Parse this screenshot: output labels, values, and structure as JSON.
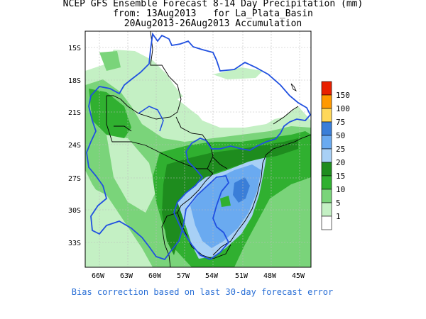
{
  "title": {
    "line1": "NCEP GFS Ensemble Forecast 8-14 Day Precipitation (mm)",
    "line2": "from: 13Aug2013   for La_Plata_Basin",
    "line3": "20Aug2013-26Aug2013 Accumulation"
  },
  "axes": {
    "lat_labels": [
      "15S",
      "18S",
      "21S",
      "24S",
      "27S",
      "30S",
      "33S"
    ],
    "lon_labels": [
      "66W",
      "63W",
      "60W",
      "57W",
      "54W",
      "51W",
      "48W",
      "45W"
    ]
  },
  "legend": {
    "levels": [
      {
        "label": "150",
        "color": "#e82000"
      },
      {
        "label": "100",
        "color": "#ff9900"
      },
      {
        "label": "75",
        "color": "#ffd85a"
      },
      {
        "label": "50",
        "color": "#3a7ed8"
      },
      {
        "label": "25",
        "color": "#6aaaf0"
      },
      {
        "label": "20",
        "color": "#a8d0f6"
      },
      {
        "label": "15",
        "color": "#1e8c1e"
      },
      {
        "label": "10",
        "color": "#30b030"
      },
      {
        "label": "5",
        "color": "#7ad47a"
      },
      {
        "label": "1",
        "color": "#c4f0c4"
      }
    ]
  },
  "colors": {
    "basin_outline": "#2050e0",
    "borders": "#000000"
  },
  "footer": "Bias correction based on last 30-day forecast error"
}
